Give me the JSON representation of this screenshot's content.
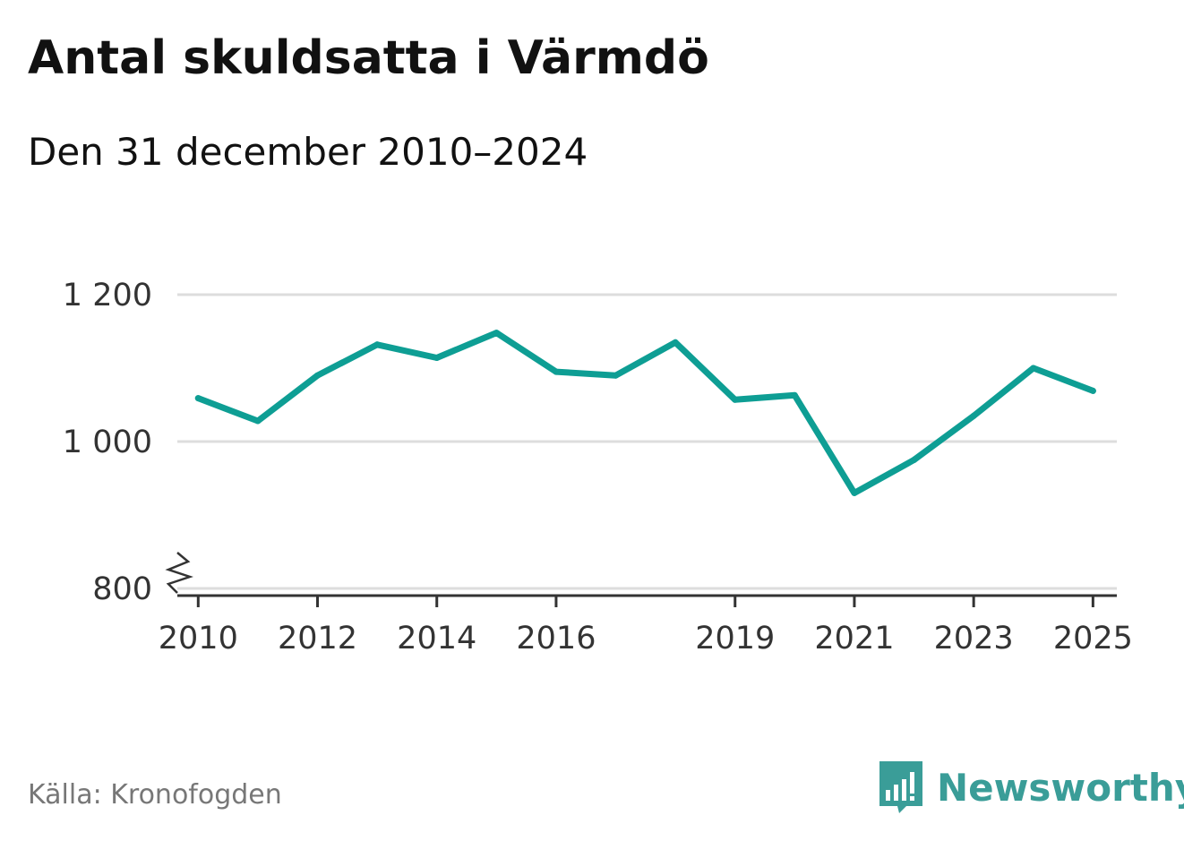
{
  "colors": {
    "line": "#0e9e94",
    "grid": "#dddddd",
    "axis": "#333333",
    "brand": "#3a9d98"
  },
  "chart_data": {
    "type": "line",
    "title": "Antal skuldsatta i Värmdö",
    "subtitle": "Den 31 december 2010–2024",
    "xlabel": "",
    "ylabel": "",
    "xlim": [
      2009.65,
      2025.4
    ],
    "ylim": [
      800,
      1200
    ],
    "y_axis_break": true,
    "grid": "horizontal",
    "x_ticks": [
      2010,
      2012,
      2014,
      2016,
      2019,
      2021,
      2023,
      2025
    ],
    "y_ticks": [
      {
        "value": 800,
        "label": "800"
      },
      {
        "value": 1000,
        "label": "1 000"
      },
      {
        "value": 1200,
        "label": "1 200"
      }
    ],
    "series": [
      {
        "x": [
          2010.0,
          2011.0,
          2012.0,
          2013.0,
          2014.0,
          2015.0,
          2016.0,
          2017.0,
          2018.0,
          2019.0,
          2020.0,
          2021.0,
          2022.0,
          2023.0,
          2024.0,
          2025.0
        ],
        "y": [
          1059,
          1028,
          1090,
          1132,
          1114,
          1148,
          1095,
          1090,
          1135,
          1057,
          1063,
          930,
          975,
          1035,
          1100,
          1069
        ]
      }
    ]
  },
  "footer": {
    "source": "Källa: Kronofogden",
    "brand": "Newsworthy"
  }
}
